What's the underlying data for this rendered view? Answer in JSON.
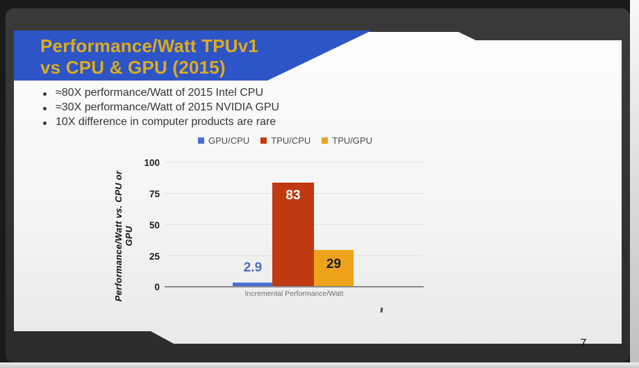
{
  "slide": {
    "title_line1": "Performance/Watt TPUv1",
    "title_line2": "vs CPU & GPU (2015)",
    "bullets": [
      "≈80X performance/Watt of 2015 Intel CPU",
      "≈30X performance/Watt of 2015 NVIDIA GPU",
      "10X difference in computer products are rare"
    ],
    "page_number": "7"
  },
  "colors": {
    "banner_blue": "#2e55c7",
    "title_gold": "#dcab1e",
    "frame_dark": "#333334",
    "slide_white": "#f7f7f7"
  },
  "chart_data": {
    "type": "bar",
    "title": "",
    "categories": [
      "Incremental Performance/Watt"
    ],
    "series": [
      {
        "name": "GPU/CPU",
        "value": 2.9,
        "label": "2.9",
        "color": "#4a6fd4",
        "label_color": "#4e6fc3"
      },
      {
        "name": "TPU/CPU",
        "value": 83,
        "label": "83",
        "color": "#bf3a10",
        "label_color": "#ffffff"
      },
      {
        "name": "TPU/GPU",
        "value": 29,
        "label": "29",
        "color": "#eda41c",
        "label_color": "#1c1c1c"
      }
    ],
    "xlabel": "Incremental Performance/Watt",
    "ylabel": "Performance/Watt vs. CPU or GPU",
    "yticks": [
      "100",
      "75",
      "50",
      "25",
      "0"
    ],
    "ylim": [
      0,
      100
    ],
    "grid": true,
    "legend_position": "top-center"
  }
}
